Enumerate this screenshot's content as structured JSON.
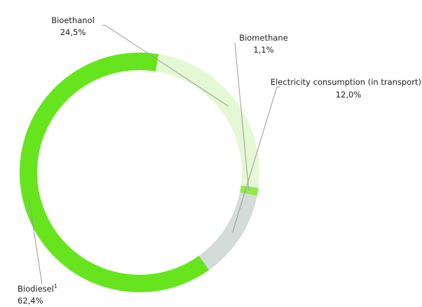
{
  "chart_data": {
    "type": "pie",
    "variant": "donut",
    "slices": [
      {
        "name": "Biodiesel",
        "name_superscript": "1",
        "value": 62.4,
        "value_label": "62,4%",
        "color": "#66e51f"
      },
      {
        "name": "Bioethanol",
        "value": 24.5,
        "value_label": "24,5%",
        "color": "#e4f8d4"
      },
      {
        "name": "Biomethane",
        "value": 1.1,
        "value_label": "1,1%",
        "color": "#92ea4a"
      },
      {
        "name": "Electricity consumption (in transport)",
        "value": 12.0,
        "value_label": "12,0%",
        "color": "#d4dcda"
      }
    ],
    "labels_with_leader_lines": true,
    "legend": "none"
  }
}
